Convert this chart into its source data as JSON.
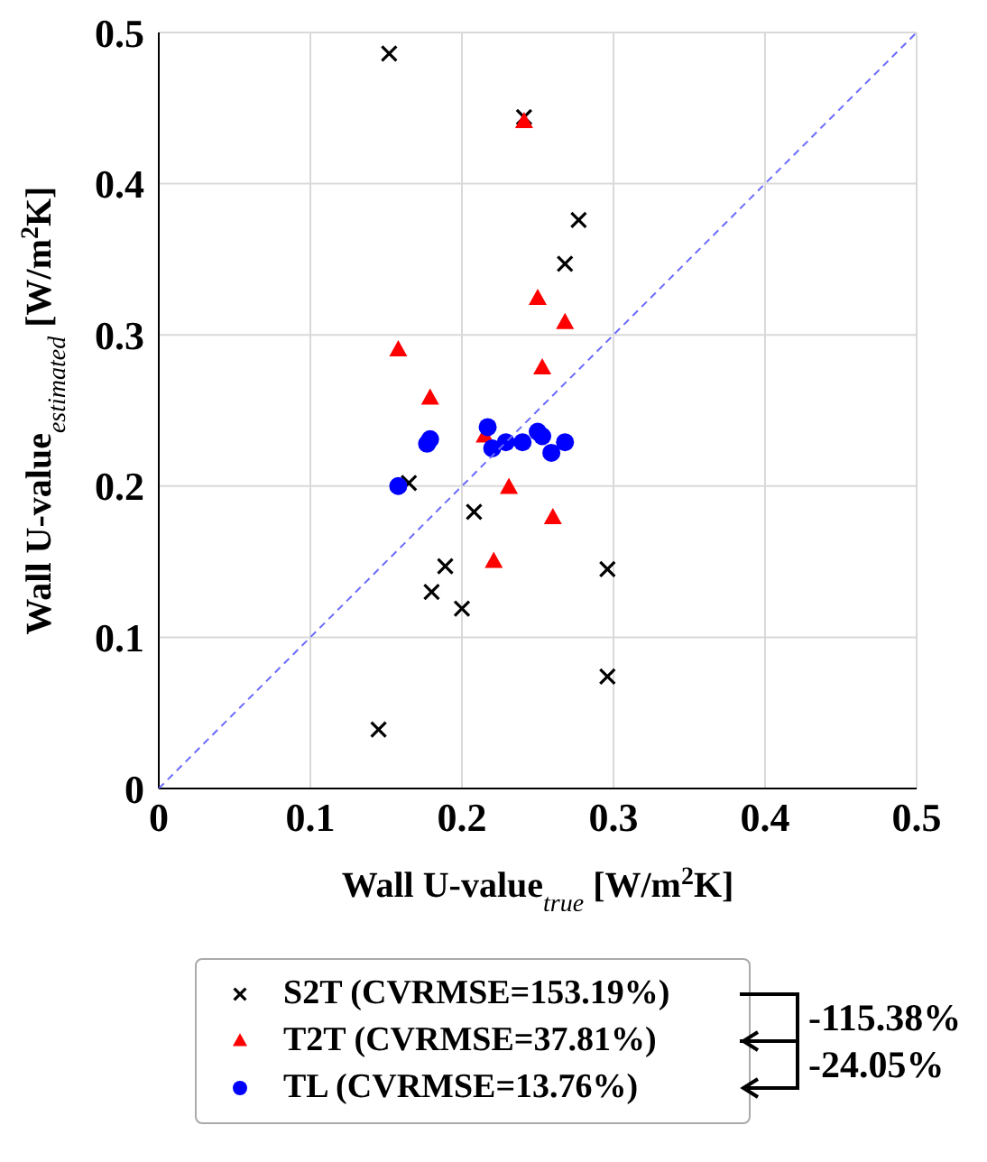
{
  "chart_data": {
    "type": "scatter",
    "xlabel": "Wall U-value$_{true}$ [W/m$^{2}$K]",
    "ylabel": "Wall U-value$_{estimated}$ [W/m$^{2}$K]",
    "xlim": [
      0,
      0.5
    ],
    "ylim": [
      0,
      0.5
    ],
    "xticks": [
      0,
      0.1,
      0.2,
      0.3,
      0.4,
      0.5
    ],
    "yticks": [
      0,
      0.1,
      0.2,
      0.3,
      0.4,
      0.5
    ],
    "grid": true,
    "legend": "bottom",
    "series": [
      {
        "name": "S2T (CVRMSE=153.19%)",
        "color": "#000000",
        "marker": "cross",
        "x": [
          0.152,
          0.241,
          0.277,
          0.268,
          0.165,
          0.208,
          0.189,
          0.18,
          0.2,
          0.145,
          0.296,
          0.296
        ],
        "values": [
          0.486,
          0.444,
          0.376,
          0.347,
          0.202,
          0.183,
          0.147,
          0.13,
          0.119,
          0.039,
          0.145,
          0.074
        ]
      },
      {
        "name": "T2T (CVRMSE=37.81%)",
        "color": "#ff0000",
        "marker": "triangle",
        "x": [
          0.241,
          0.158,
          0.179,
          0.25,
          0.253,
          0.268,
          0.215,
          0.231,
          0.26,
          0.221
        ],
        "values": [
          0.441,
          0.29,
          0.258,
          0.324,
          0.278,
          0.308,
          0.233,
          0.199,
          0.179,
          0.15
        ]
      },
      {
        "name": "TL (CVRMSE=13.76%)",
        "color": "#0000ff",
        "marker": "circle",
        "x": [
          0.158,
          0.177,
          0.179,
          0.217,
          0.22,
          0.229,
          0.24,
          0.25,
          0.253,
          0.259,
          0.268
        ],
        "values": [
          0.2,
          0.228,
          0.231,
          0.239,
          0.225,
          0.229,
          0.229,
          0.236,
          0.233,
          0.222,
          0.229
        ]
      },
      {
        "type": "line",
        "color": "#6b6bff",
        "line_style": "dashed",
        "marker": "none",
        "x": [
          0,
          0.5
        ],
        "values": [
          0,
          0.5
        ]
      }
    ],
    "annotations": [
      "-115.38%",
      "-24.05%"
    ]
  }
}
